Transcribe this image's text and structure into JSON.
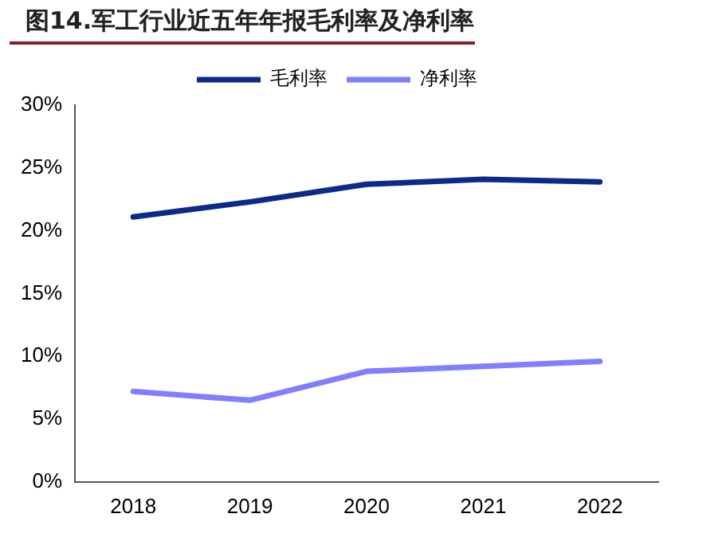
{
  "chart_data": {
    "type": "line",
    "title": "图14.军工行业近五年年报毛利率及净利率",
    "categories": [
      "2018",
      "2019",
      "2020",
      "2021",
      "2022"
    ],
    "series": [
      {
        "name": "毛利率",
        "color": "#0c2a8a",
        "values": [
          21.1,
          22.3,
          23.7,
          24.1,
          23.9
        ]
      },
      {
        "name": "净利率",
        "color": "#7f7fff",
        "values": [
          7.2,
          6.5,
          8.8,
          9.2,
          9.6
        ]
      }
    ],
    "ylim": [
      0,
      30
    ],
    "yticks": [
      {
        "value": 0,
        "label": "0%"
      },
      {
        "value": 5,
        "label": "5%"
      },
      {
        "value": 10,
        "label": "10%"
      },
      {
        "value": 15,
        "label": "15%"
      },
      {
        "value": 20,
        "label": "20%"
      },
      {
        "value": 25,
        "label": "25%"
      },
      {
        "value": 30,
        "label": "30%"
      }
    ],
    "grid": false,
    "legend": "top",
    "marker": "none",
    "line_style": "solid"
  }
}
